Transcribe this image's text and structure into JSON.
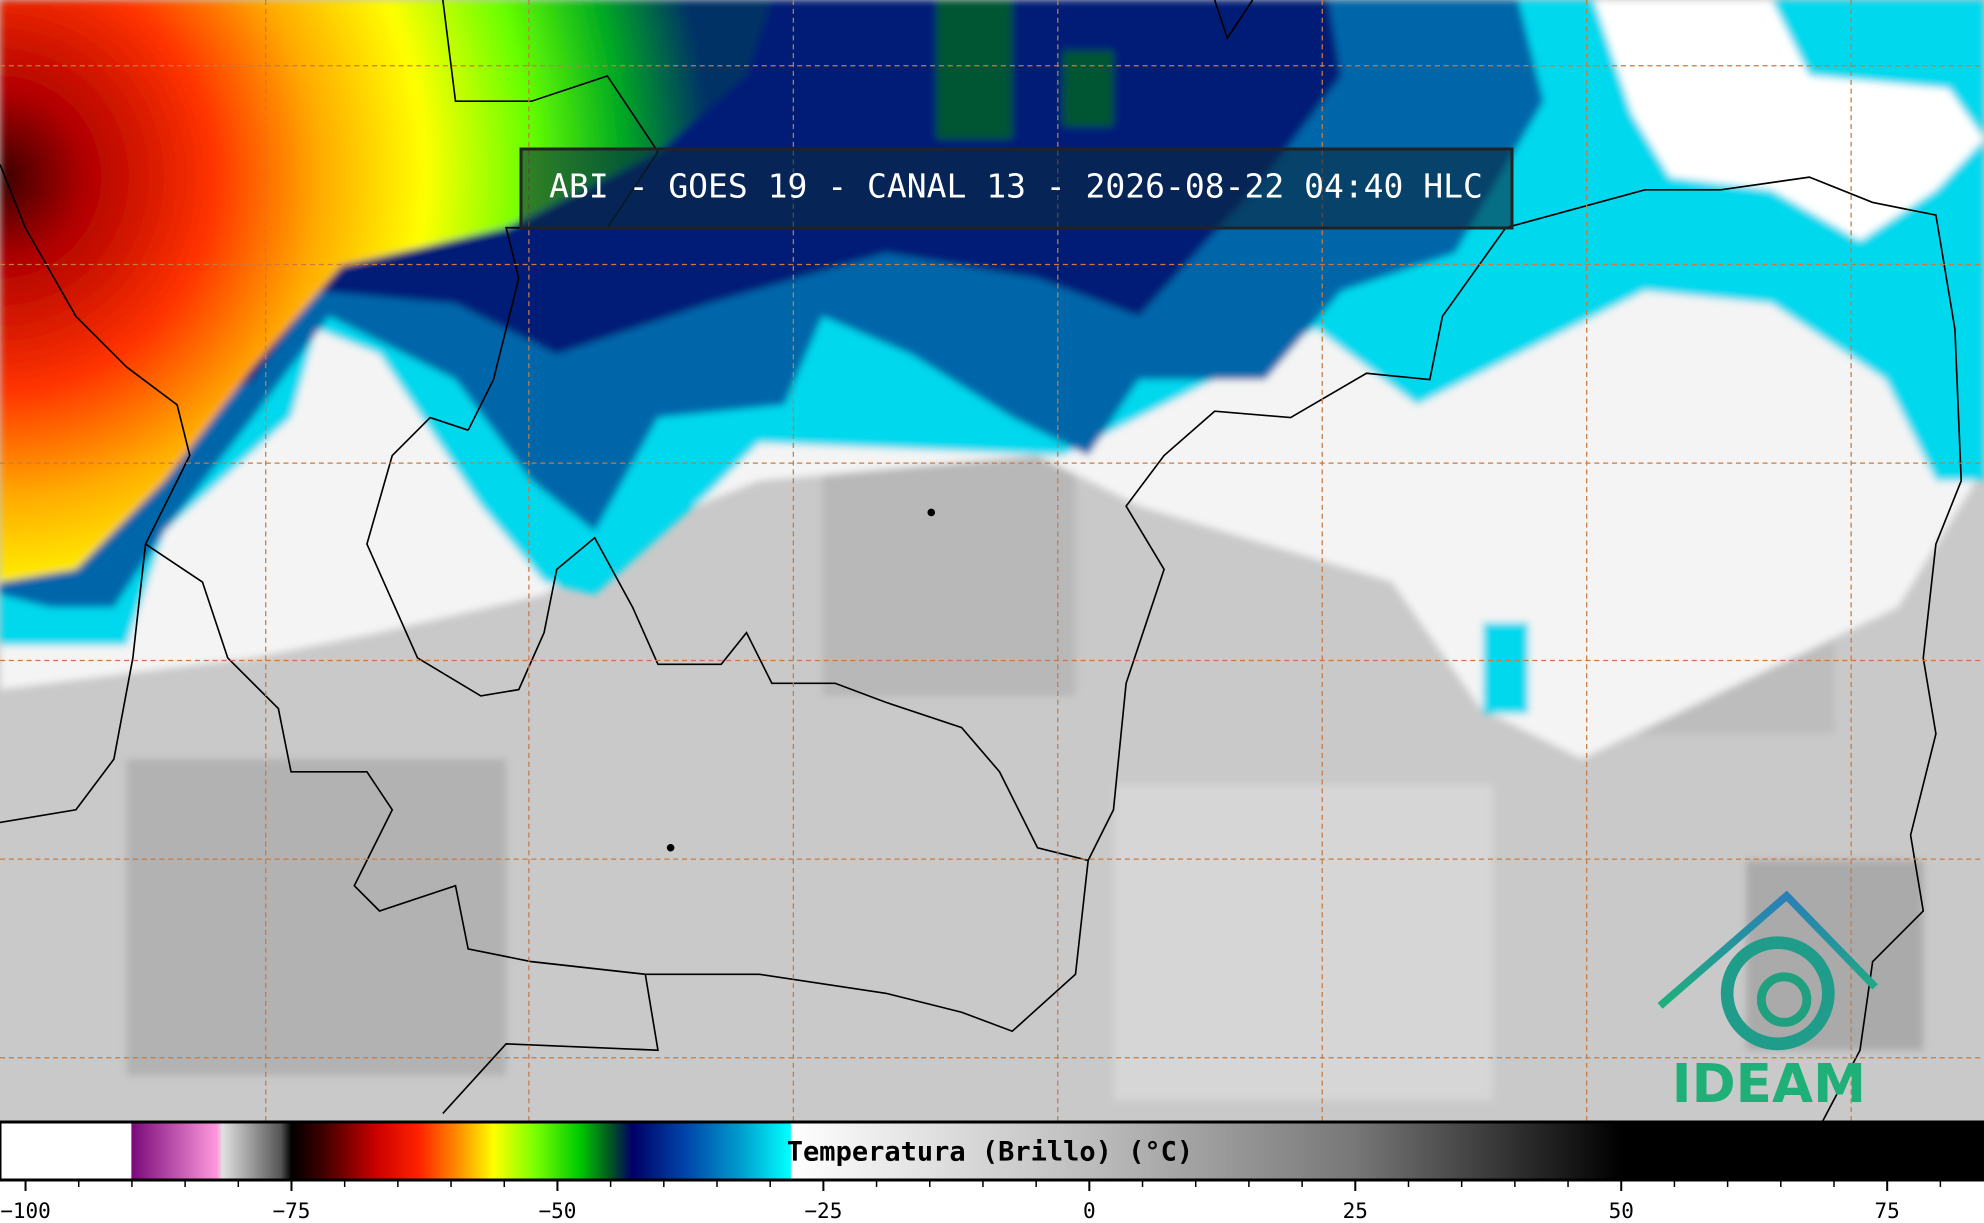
{
  "title": "ABI - GOES 19 - CANAL 13 - 2026-08-22 04:40 HLC",
  "logo": "IDEAM",
  "colorbar": {
    "label": "Temperatura (Brillo) (°C)",
    "xlim": [
      -102.4,
      84.1
    ],
    "ticks": [
      {
        "value": -100,
        "label": "−100"
      },
      {
        "value": -75,
        "label": "−75"
      },
      {
        "value": -50,
        "label": "−50"
      },
      {
        "value": -25,
        "label": "−25"
      },
      0,
      25,
      50,
      75
    ],
    "minor_ticks": [
      -95,
      -90,
      -85,
      -80,
      -70,
      -65,
      -60,
      -55,
      -45,
      -40,
      -35,
      -30,
      -20,
      -15,
      -10,
      -5,
      5,
      10,
      15,
      20,
      30,
      35,
      40,
      45,
      55,
      60,
      65,
      70,
      80
    ],
    "colormap": [
      {
        "value": -102.4,
        "color": "#ffffff"
      },
      {
        "value": -90.1,
        "color": "#ffffff"
      },
      {
        "value": -90,
        "color": "#7a0a7a"
      },
      {
        "value": -82,
        "color": "#ff99dd"
      },
      {
        "value": -81.5,
        "color": "#e0e0e0"
      },
      {
        "value": -76,
        "color": "#555555"
      },
      {
        "value": -75,
        "color": "#000000"
      },
      {
        "value": -72,
        "color": "#400000"
      },
      {
        "value": -67,
        "color": "#cc0000"
      },
      {
        "value": -63,
        "color": "#ff2200"
      },
      {
        "value": -59,
        "color": "#ff9900"
      },
      {
        "value": -56,
        "color": "#ffff00"
      },
      {
        "value": -52,
        "color": "#77ff00"
      },
      {
        "value": -48,
        "color": "#00cc00"
      },
      {
        "value": -45,
        "color": "#005522"
      },
      {
        "value": -43,
        "color": "#000066"
      },
      {
        "value": -38,
        "color": "#0044aa"
      },
      {
        "value": -33,
        "color": "#0099cc"
      },
      {
        "value": -28.1,
        "color": "#00ffff"
      },
      {
        "value": -28,
        "color": "#ffffff"
      },
      {
        "value": 0,
        "color": "#bdbdbd"
      },
      {
        "value": 25,
        "color": "#777777"
      },
      {
        "value": 50,
        "color": "#000000"
      },
      {
        "value": 84.1,
        "color": "#000000"
      }
    ]
  }
}
